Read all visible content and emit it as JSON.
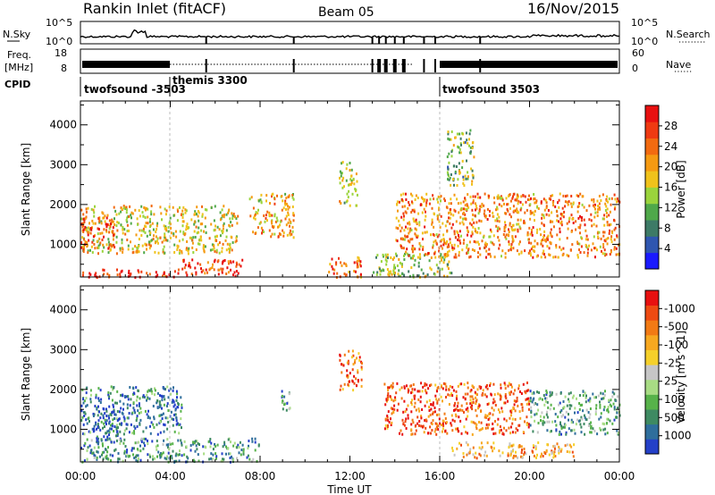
{
  "header": {
    "title": "Rankin Inlet (fitACF)",
    "beam": "Beam 05",
    "date": "16/Nov/2015"
  },
  "noise_panel": {
    "left_label": "N.Sky",
    "left_ticks": [
      "10^5",
      "10^0"
    ],
    "right_label": "N.Search",
    "right_ticks": [
      "10^5",
      "10^0"
    ]
  },
  "freq_panel": {
    "left_label_line1": "Freq.",
    "left_label_line2": "[MHz]",
    "left_ticks": [
      "18",
      "8"
    ],
    "right_label": "Nave",
    "right_ticks": [
      "60",
      "0"
    ]
  },
  "cpid": {
    "label": "CPID",
    "segments": [
      {
        "start_hour": 0,
        "name": "twofsound -3503"
      },
      {
        "start_hour": 4,
        "name": "themis 3300"
      },
      {
        "start_hour": 16,
        "name": "twofsound 3503"
      }
    ]
  },
  "chart_data": [
    {
      "type": "heatmap",
      "title": "",
      "xlabel": "Time UT",
      "ylabel": "Slant Range [km]",
      "x_ticks": [
        "00:00",
        "04:00",
        "08:00",
        "12:00",
        "16:00",
        "20:00",
        "00:00"
      ],
      "xlim_hours": [
        0,
        24
      ],
      "y_ticks": [
        1000,
        2000,
        3000,
        4000
      ],
      "ylim_km": [
        180,
        4600
      ],
      "colorbar": {
        "label": "Power [dB]",
        "tick_labels": [
          "4",
          "8",
          "12",
          "16",
          "20",
          "24",
          "28"
        ],
        "colors": [
          "#1a1aff",
          "#2f56b0",
          "#3d7a66",
          "#4fa84a",
          "#9ad43c",
          "#f0c21b",
          "#f59a12",
          "#f26a10",
          "#ef3a12",
          "#e81010"
        ]
      },
      "series": [
        {
          "start_hour": 0.0,
          "end_hour": 4.5,
          "min_km": 200,
          "max_km": 400,
          "level": 0.92
        },
        {
          "start_hour": 4.5,
          "end_hour": 7.2,
          "min_km": 200,
          "max_km": 650,
          "level": 0.85
        },
        {
          "start_hour": 0.0,
          "end_hour": 7.0,
          "min_km": 800,
          "max_km": 2000,
          "level": 0.55
        },
        {
          "start_hour": 0.0,
          "end_hour": 1.5,
          "min_km": 900,
          "max_km": 1700,
          "level": 0.8
        },
        {
          "start_hour": 7.5,
          "end_hour": 9.5,
          "min_km": 1200,
          "max_km": 2300,
          "level": 0.6
        },
        {
          "start_hour": 11.0,
          "end_hour": 12.5,
          "min_km": 200,
          "max_km": 700,
          "level": 0.75
        },
        {
          "start_hour": 11.5,
          "end_hour": 12.3,
          "min_km": 2000,
          "max_km": 3100,
          "level": 0.5
        },
        {
          "start_hour": 13.0,
          "end_hour": 16.5,
          "min_km": 200,
          "max_km": 800,
          "level": 0.45
        },
        {
          "start_hour": 14.0,
          "end_hour": 24.0,
          "min_km": 700,
          "max_km": 2300,
          "level": 0.7
        },
        {
          "start_hour": 16.3,
          "end_hour": 17.5,
          "min_km": 2500,
          "max_km": 3900,
          "level": 0.4
        }
      ]
    },
    {
      "type": "heatmap",
      "title": "",
      "xlabel": "Time UT",
      "ylabel": "Slant Range [km]",
      "x_ticks": [
        "00:00",
        "04:00",
        "08:00",
        "12:00",
        "16:00",
        "20:00",
        "00:00"
      ],
      "xlim_hours": [
        0,
        24
      ],
      "y_ticks": [
        1000,
        2000,
        3000,
        4000
      ],
      "ylim_km": [
        180,
        4600
      ],
      "colorbar": {
        "label": "Velocity [m s^-1]",
        "tick_labels": [
          "1000",
          "500",
          "100",
          "25",
          "-25",
          "-100",
          "-500",
          "-1000"
        ],
        "colors": [
          "#2440c8",
          "#2f6e9c",
          "#3e8a62",
          "#57b24a",
          "#a8dc84",
          "#c6c6c6",
          "#f5d02a",
          "#f7a820",
          "#f27a14",
          "#ee4a12",
          "#e81010"
        ]
      },
      "series": [
        {
          "start_hour": 0.0,
          "end_hour": 8.0,
          "min_km": 200,
          "max_km": 800,
          "level": 0.25
        },
        {
          "start_hour": 0.0,
          "end_hour": 4.5,
          "min_km": 900,
          "max_km": 2100,
          "level": 0.18
        },
        {
          "start_hour": 0.5,
          "end_hour": 1.8,
          "min_km": 700,
          "max_km": 1500,
          "level": 0.05
        },
        {
          "start_hour": 8.8,
          "end_hour": 9.3,
          "min_km": 1400,
          "max_km": 2000,
          "level": 0.3
        },
        {
          "start_hour": 11.5,
          "end_hour": 12.5,
          "min_km": 2000,
          "max_km": 3000,
          "level": 0.8
        },
        {
          "start_hour": 13.5,
          "end_hour": 20.0,
          "min_km": 900,
          "max_km": 2200,
          "level": 0.85
        },
        {
          "start_hour": 16.5,
          "end_hour": 22.0,
          "min_km": 300,
          "max_km": 700,
          "level": 0.68
        },
        {
          "start_hour": 20.0,
          "end_hour": 24.0,
          "min_km": 900,
          "max_km": 2000,
          "level": 0.3
        }
      ]
    }
  ]
}
